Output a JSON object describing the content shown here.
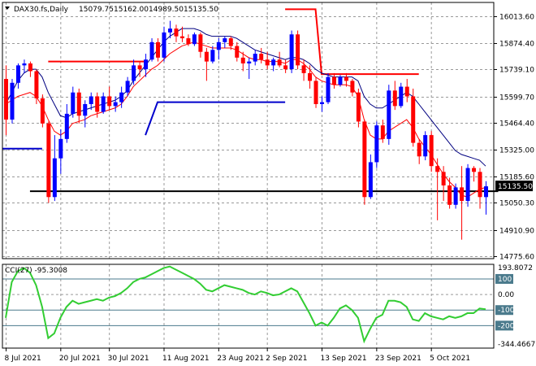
{
  "chart_data": [
    {
      "type": "candlestick",
      "title": "DAX30.fs,Daily",
      "ohlc_header": [
        "15079.75",
        "15162.00",
        "14989.50",
        "15135.50"
      ],
      "current_price_label": "15135.50",
      "y_ticks": [
        "16013.60",
        "15874.40",
        "15739.10",
        "15599.70",
        "15464.40",
        "15325.00",
        "15185.60",
        "15050.30",
        "14910.90",
        "14775.60"
      ],
      "ylim": [
        14762,
        16085
      ],
      "x_ticks": [
        "8 Jul 2021",
        "20 Jul 2021",
        "30 Jul 2021",
        "11 Aug 2021",
        "23 Aug 2021",
        "2 Sep 2021",
        "13 Sep 2021",
        "23 Sep 2021",
        "5 Oct 2021"
      ],
      "candles": [
        [
          15690,
          15760,
          15400,
          15480
        ],
        [
          15480,
          15690,
          15460,
          15670
        ],
        [
          15670,
          15770,
          15640,
          15760
        ],
        [
          15760,
          15790,
          15720,
          15770
        ],
        [
          15770,
          15780,
          15700,
          15730
        ],
        [
          15730,
          15740,
          15560,
          15590
        ],
        [
          15590,
          15610,
          15440,
          15460
        ],
        [
          15460,
          15470,
          15050,
          15080
        ],
        [
          15080,
          15400,
          15060,
          15280
        ],
        [
          15280,
          15430,
          15200,
          15380
        ],
        [
          15380,
          15560,
          15360,
          15510
        ],
        [
          15510,
          15650,
          15490,
          15620
        ],
        [
          15620,
          15640,
          15460,
          15500
        ],
        [
          15500,
          15580,
          15440,
          15560
        ],
        [
          15560,
          15620,
          15530,
          15600
        ],
        [
          15600,
          15620,
          15490,
          15520
        ],
        [
          15520,
          15620,
          15510,
          15600
        ],
        [
          15600,
          15650,
          15530,
          15550
        ],
        [
          15550,
          15600,
          15520,
          15570
        ],
        [
          15570,
          15650,
          15540,
          15620
        ],
        [
          15620,
          15700,
          15600,
          15680
        ],
        [
          15680,
          15790,
          15660,
          15760
        ],
        [
          15760,
          15780,
          15700,
          15740
        ],
        [
          15740,
          15820,
          15700,
          15790
        ],
        [
          15790,
          15900,
          15780,
          15880
        ],
        [
          15880,
          15900,
          15780,
          15800
        ],
        [
          15800,
          15960,
          15780,
          15930
        ],
        [
          15930,
          15990,
          15900,
          15950
        ],
        [
          15950,
          15970,
          15880,
          15910
        ],
        [
          15910,
          15960,
          15880,
          15900
        ],
        [
          15900,
          15920,
          15860,
          15870
        ],
        [
          15870,
          15930,
          15860,
          15920
        ],
        [
          15920,
          15930,
          15800,
          15830
        ],
        [
          15830,
          15850,
          15680,
          15780
        ],
        [
          15780,
          15860,
          15770,
          15840
        ],
        [
          15840,
          15900,
          15790,
          15880
        ],
        [
          15880,
          15910,
          15850,
          15900
        ],
        [
          15900,
          15910,
          15840,
          15860
        ],
        [
          15860,
          15880,
          15780,
          15800
        ],
        [
          15800,
          15830,
          15730,
          15770
        ],
        [
          15770,
          15800,
          15690,
          15780
        ],
        [
          15780,
          15840,
          15760,
          15820
        ],
        [
          15820,
          15850,
          15770,
          15790
        ],
        [
          15790,
          15830,
          15740,
          15760
        ],
        [
          15760,
          15800,
          15730,
          15790
        ],
        [
          15790,
          15830,
          15750,
          15760
        ],
        [
          15760,
          15790,
          15720,
          15740
        ],
        [
          15740,
          15940,
          15720,
          15920
        ],
        [
          15920,
          15940,
          15740,
          15760
        ],
        [
          15760,
          15790,
          15680,
          15720
        ],
        [
          15720,
          15760,
          15640,
          15680
        ],
        [
          15680,
          15700,
          15540,
          15560
        ],
        [
          15560,
          15600,
          15520,
          15570
        ],
        [
          15570,
          15720,
          15560,
          15700
        ],
        [
          15700,
          15720,
          15640,
          15660
        ],
        [
          15660,
          15710,
          15650,
          15700
        ],
        [
          15700,
          15720,
          15650,
          15680
        ],
        [
          15680,
          15690,
          15600,
          15620
        ],
        [
          15620,
          15640,
          15440,
          15470
        ],
        [
          15470,
          15480,
          15040,
          15080
        ],
        [
          15080,
          15300,
          15070,
          15260
        ],
        [
          15260,
          15470,
          15230,
          15450
        ],
        [
          15450,
          15480,
          15360,
          15380
        ],
        [
          15380,
          15660,
          15350,
          15630
        ],
        [
          15630,
          15680,
          15530,
          15550
        ],
        [
          15550,
          15670,
          15540,
          15650
        ],
        [
          15650,
          15690,
          15570,
          15600
        ],
        [
          15600,
          15640,
          15340,
          15360
        ],
        [
          15360,
          15380,
          15250,
          15290
        ],
        [
          15290,
          15420,
          15270,
          15400
        ],
        [
          15400,
          15420,
          15210,
          15240
        ],
        [
          15240,
          15280,
          14960,
          15210
        ],
        [
          15210,
          15240,
          15060,
          15140
        ],
        [
          15140,
          15180,
          15020,
          15040
        ],
        [
          15040,
          15150,
          15020,
          15130
        ],
        [
          15130,
          15240,
          14860,
          15060
        ],
        [
          15060,
          15250,
          15030,
          15230
        ],
        [
          15230,
          15240,
          15160,
          15210
        ],
        [
          15210,
          15230,
          15020,
          15080
        ],
        [
          15079.75,
          15162,
          14989.5,
          15135.5
        ]
      ],
      "red_ma": [
        15560,
        15580,
        15600,
        15610,
        15620,
        15600,
        15550,
        15480,
        15420,
        15400,
        15420,
        15460,
        15470,
        15480,
        15500,
        15510,
        15520,
        15530,
        15540,
        15560,
        15600,
        15650,
        15680,
        15710,
        15740,
        15760,
        15790,
        15820,
        15840,
        15860,
        15870,
        15880,
        15870,
        15860,
        15850,
        15850,
        15850,
        15850,
        15840,
        15820,
        15800,
        15790,
        15790,
        15780,
        15780,
        15780,
        15770,
        15790,
        15790,
        15770,
        15740,
        15700,
        15680,
        15670,
        15660,
        15660,
        15660,
        15650,
        15600,
        15480,
        15400,
        15380,
        15380,
        15420,
        15440,
        15460,
        15480,
        15440,
        15380,
        15340,
        15300,
        15250,
        15200,
        15160,
        15130,
        15090,
        15080,
        15100,
        15120,
        15130
      ],
      "navy_ma": [
        15560,
        15620,
        15680,
        15720,
        15740,
        15740,
        15700,
        15620,
        15560,
        15500,
        15490,
        15510,
        15520,
        15530,
        15540,
        15550,
        15560,
        15570,
        15580,
        15600,
        15630,
        15680,
        15720,
        15760,
        15800,
        15840,
        15880,
        15910,
        15930,
        15950,
        15950,
        15950,
        15940,
        15920,
        15910,
        15910,
        15910,
        15910,
        15900,
        15880,
        15860,
        15840,
        15830,
        15820,
        15810,
        15800,
        15790,
        15800,
        15800,
        15790,
        15770,
        15740,
        15720,
        15710,
        15700,
        15700,
        15700,
        15700,
        15680,
        15600,
        15560,
        15540,
        15540,
        15560,
        15580,
        15600,
        15620,
        15600,
        15560,
        15520,
        15480,
        15440,
        15400,
        15360,
        15320,
        15300,
        15290,
        15280,
        15270,
        15240
      ],
      "horizontal_levels": [
        {
          "color": "#0000cc",
          "value": 15330,
          "from_bar": 0,
          "to_bar": 6
        },
        {
          "color": "#ff0000",
          "value": 15780,
          "from_bar": 7,
          "to_bar": 23
        },
        {
          "color": "#0000cc",
          "value": 15570,
          "segments": [
            [
              23,
              15400
            ],
            [
              25,
              15570
            ],
            [
              46,
              15570
            ]
          ]
        },
        {
          "color": "#ff0000",
          "value": 16050,
          "segments": [
            [
              46,
              16050
            ],
            [
              51,
              16050
            ],
            [
              52,
              15715
            ],
            [
              68,
              15715
            ]
          ]
        },
        {
          "color": "#000000",
          "value": 15110,
          "from_bar": 4,
          "to_bar": 80
        }
      ],
      "grid": true
    },
    {
      "type": "line",
      "title": "CCI(27) -95.3008",
      "y_ticks": [
        "193.8072",
        "100",
        "0.00",
        "-100",
        "-200",
        "-344.4667"
      ],
      "ylim": [
        -344.4667,
        193.8072
      ],
      "levels": [
        100,
        -100,
        -200
      ],
      "values": [
        -150,
        80,
        150,
        170,
        140,
        60,
        -80,
        -280,
        -250,
        -150,
        -80,
        -40,
        -60,
        -50,
        -40,
        -30,
        -40,
        -20,
        -10,
        10,
        40,
        80,
        100,
        110,
        130,
        150,
        170,
        180,
        160,
        140,
        120,
        100,
        70,
        30,
        20,
        40,
        60,
        50,
        40,
        30,
        10,
        0,
        20,
        10,
        -5,
        0,
        20,
        40,
        20,
        -50,
        -120,
        -200,
        -180,
        -200,
        -150,
        -90,
        -70,
        -100,
        -150,
        -300,
        -220,
        -150,
        -130,
        -40,
        -40,
        -50,
        -80,
        -160,
        -170,
        -120,
        -140,
        -150,
        -160,
        -140,
        -150,
        -140,
        -120,
        -120,
        -90,
        -95
      ]
    }
  ]
}
